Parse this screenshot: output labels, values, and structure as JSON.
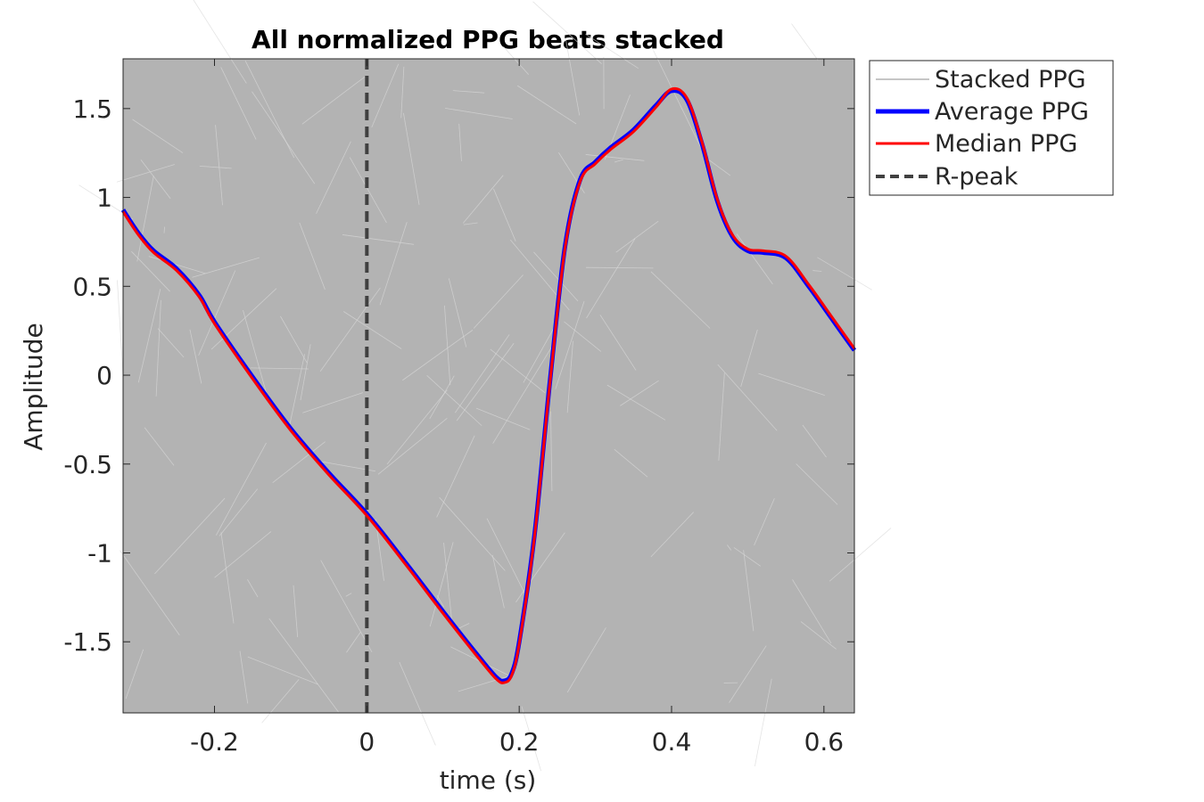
{
  "chart_data": {
    "type": "line",
    "title": "All normalized PPG beats stacked",
    "xlabel": "time (s)",
    "ylabel": "Amplitude",
    "xlim": [
      -0.32,
      0.64
    ],
    "ylim": [
      -1.9,
      1.78
    ],
    "x_ticks": [
      -0.2,
      0,
      0.2,
      0.4,
      0.6
    ],
    "x_tick_labels": [
      "-0.2",
      "0",
      "0.2",
      "0.4",
      "0.6"
    ],
    "y_ticks": [
      -1.5,
      -1,
      -0.5,
      0,
      0.5,
      1,
      1.5
    ],
    "y_tick_labels": [
      "-1.5",
      "-1",
      "-0.5",
      "0",
      "0.5",
      "1",
      "1.5"
    ],
    "grid": false,
    "legend_position": "outside-top-right",
    "colors": {
      "stacked": "#b3b3b3",
      "average": "#0000ff",
      "median": "#ff0000",
      "rpeak": "#404040"
    },
    "series": [
      {
        "name": "Stacked PPG",
        "style": "thin-gray-band",
        "x": [
          -0.32,
          0.64
        ],
        "y": [
          -1.9,
          1.78
        ]
      },
      {
        "name": "Average PPG",
        "x": [
          -0.32,
          -0.3,
          -0.28,
          -0.25,
          -0.22,
          -0.2,
          -0.15,
          -0.1,
          -0.05,
          0,
          0.05,
          0.1,
          0.15,
          0.17,
          0.18,
          0.19,
          0.2,
          0.22,
          0.24,
          0.26,
          0.28,
          0.3,
          0.32,
          0.35,
          0.38,
          0.4,
          0.42,
          0.44,
          0.46,
          0.48,
          0.5,
          0.52,
          0.55,
          0.58,
          0.61,
          0.64
        ],
        "y": [
          0.93,
          0.8,
          0.7,
          0.6,
          0.45,
          0.3,
          -0.01,
          -0.3,
          -0.55,
          -0.78,
          -1.05,
          -1.33,
          -1.6,
          -1.7,
          -1.72,
          -1.68,
          -1.5,
          -0.9,
          -0.05,
          0.72,
          1.1,
          1.2,
          1.28,
          1.38,
          1.52,
          1.6,
          1.55,
          1.3,
          0.98,
          0.78,
          0.7,
          0.69,
          0.66,
          0.5,
          0.32,
          0.14
        ]
      },
      {
        "name": "Median PPG",
        "x": [
          -0.32,
          -0.3,
          -0.28,
          -0.25,
          -0.22,
          -0.2,
          -0.15,
          -0.1,
          -0.05,
          0,
          0.05,
          0.1,
          0.15,
          0.17,
          0.18,
          0.19,
          0.2,
          0.22,
          0.24,
          0.26,
          0.28,
          0.3,
          0.32,
          0.35,
          0.38,
          0.4,
          0.42,
          0.44,
          0.46,
          0.48,
          0.5,
          0.52,
          0.55,
          0.58,
          0.61,
          0.64
        ],
        "y": [
          0.92,
          0.79,
          0.69,
          0.59,
          0.44,
          0.29,
          -0.02,
          -0.31,
          -0.56,
          -0.79,
          -1.06,
          -1.34,
          -1.61,
          -1.71,
          -1.73,
          -1.69,
          -1.51,
          -0.91,
          -0.06,
          0.71,
          1.09,
          1.19,
          1.27,
          1.37,
          1.51,
          1.61,
          1.56,
          1.31,
          0.99,
          0.79,
          0.71,
          0.7,
          0.67,
          0.51,
          0.33,
          0.15
        ]
      },
      {
        "name": "R-peak",
        "style": "dashed-vertical",
        "x": [
          0,
          0
        ],
        "y": [
          -1.9,
          1.78
        ]
      }
    ]
  }
}
